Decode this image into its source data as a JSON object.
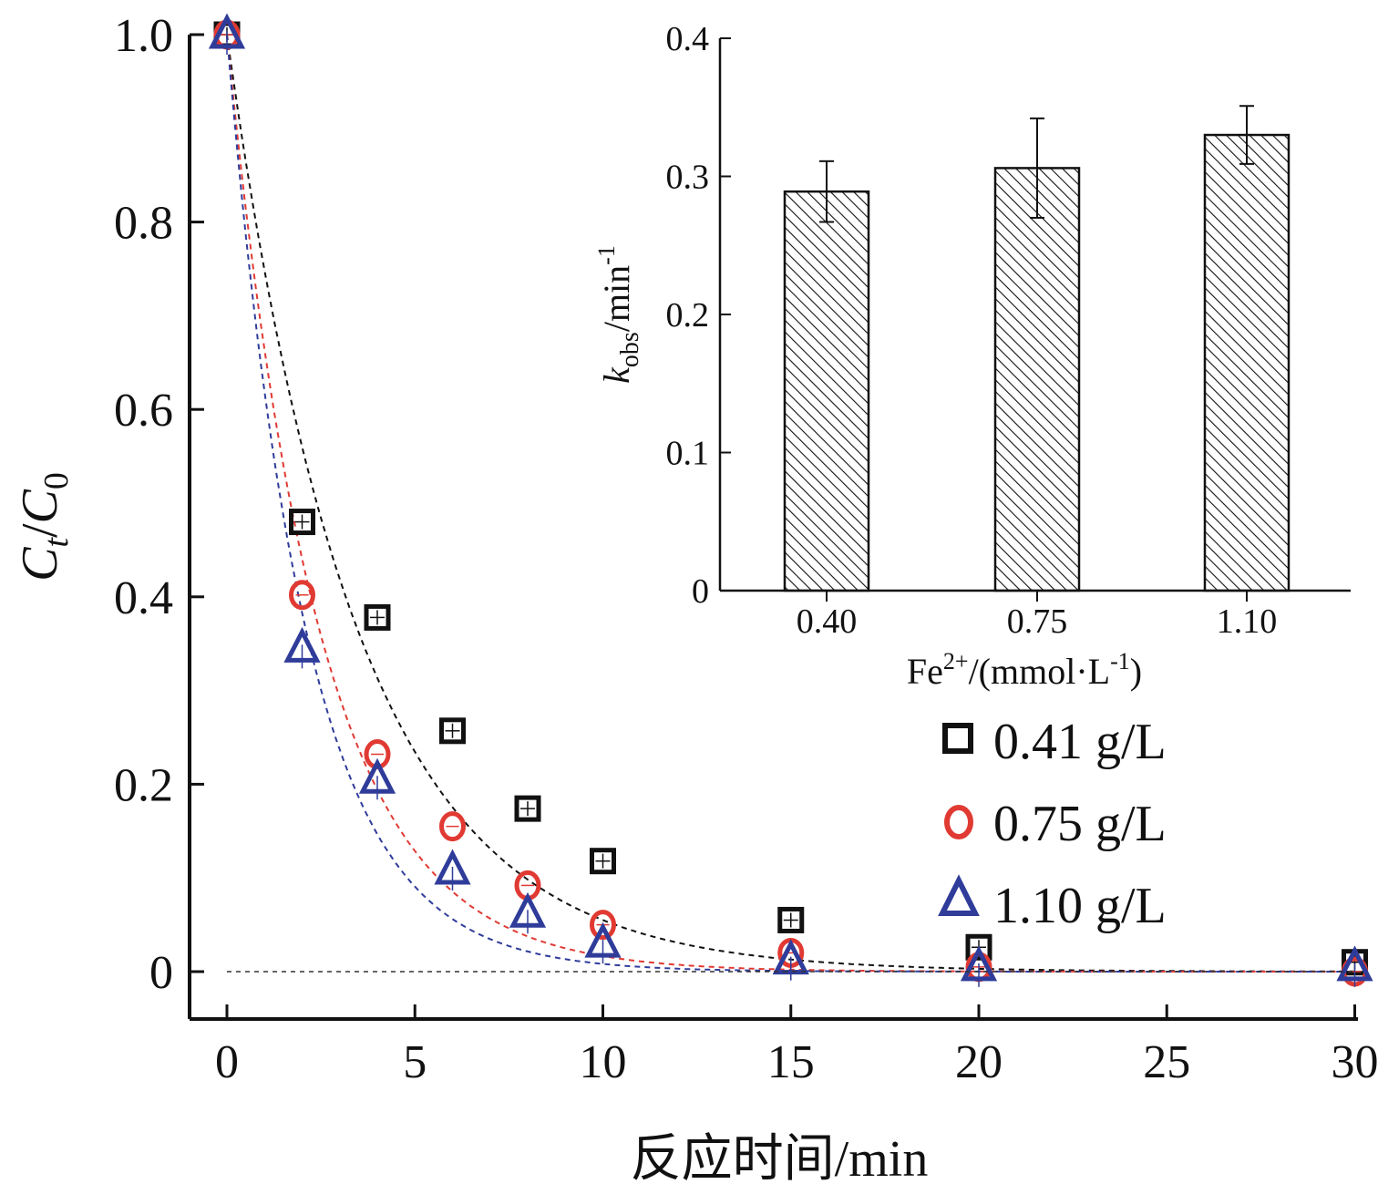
{
  "colors": {
    "s1": "#111111",
    "s2": "#e03a33",
    "s3": "#2f3c9a",
    "axis": "#111111"
  },
  "main": {
    "xlabel": "反应时间/min",
    "ylabel_parts": {
      "C": "C",
      "t": "t",
      "sep": "/",
      "C0": "C",
      "zero": "0"
    },
    "xticks": [
      "0",
      "5",
      "10",
      "15",
      "20",
      "25",
      "30"
    ],
    "yticks": [
      "0",
      "0.2",
      "0.4",
      "0.6",
      "0.8",
      "1.0"
    ]
  },
  "legend": [
    {
      "label": "0.41 g/L",
      "marker": "square"
    },
    {
      "label": "0.75 g/L",
      "marker": "circle"
    },
    {
      "label": "1.10 g/L",
      "marker": "triangle"
    }
  ],
  "inset": {
    "ylabel_parts": {
      "k": "k",
      "obs": "obs",
      "rest": "/min",
      "exp": "-1"
    },
    "xlabel_parts": {
      "fe": "Fe",
      "sup": "2+",
      "mid": "/(mmol·L",
      "sup2": "-1",
      "end": ")"
    },
    "yticks": [
      "0",
      "0.1",
      "0.2",
      "0.3",
      "0.4"
    ],
    "categories": [
      "0.40",
      "0.75",
      "1.10"
    ]
  },
  "chart_data": [
    {
      "type": "scatter",
      "xlabel": "反应时间/min",
      "ylabel": "Ct/C0",
      "xlim": [
        -1,
        30
      ],
      "ylim": [
        -0.1,
        1.0
      ],
      "x": [
        0,
        2,
        4,
        6,
        8,
        10,
        15,
        20,
        30
      ],
      "series": [
        {
          "name": "0.41 g/L",
          "marker": "square",
          "values": [
            1.0,
            0.48,
            0.378,
            0.257,
            0.174,
            0.118,
            0.055,
            0.026,
            0.01
          ],
          "fit_k": 0.29
        },
        {
          "name": "0.75 g/L",
          "marker": "circle",
          "values": [
            1.0,
            0.402,
            0.232,
            0.155,
            0.092,
            0.05,
            0.02,
            0.005,
            0.0
          ],
          "fit_k": 0.41
        },
        {
          "name": "1.10 g/L",
          "marker": "triangle",
          "values": [
            1.0,
            0.345,
            0.205,
            0.108,
            0.062,
            0.03,
            0.012,
            0.005,
            0.005
          ],
          "fit_k": 0.48
        }
      ],
      "fit_lines": "dashed exponential decay, color matches series"
    },
    {
      "type": "bar",
      "xlabel": "Fe2+/(mmol·L-1)",
      "ylabel": "kobs/min-1",
      "ylim": [
        0,
        0.4
      ],
      "categories": [
        "0.40",
        "0.75",
        "1.10"
      ],
      "values": [
        0.289,
        0.306,
        0.33
      ],
      "error": [
        0.022,
        0.036,
        0.021
      ],
      "pattern": "diagonal hatch"
    }
  ]
}
